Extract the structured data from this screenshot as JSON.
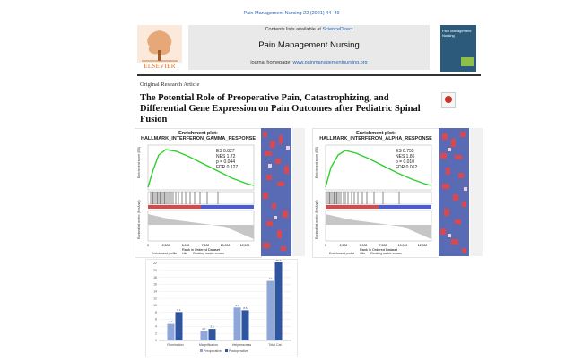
{
  "header": {
    "journal_ref": "Pain Management Nursing 22 (2021) 44–49",
    "contents_prefix": "Contents lists available at ",
    "contents_link": "ScienceDirect",
    "journal_name": "Pain Management Nursing",
    "homepage_prefix": "journal homepage: ",
    "homepage_url": "www.painmanagementnursing.org",
    "publisher": "ELSEVIER",
    "cover_title": "Pain Management Nursing"
  },
  "article": {
    "type": "Original Research Article",
    "title": "The Potential Role of Preoperative Pain, Catastrophizing, and Differential Gene Expression on Pain Outcomes after Pediatric Spinal Fusion"
  },
  "gsea_left": {
    "heading": "Enrichment plot:",
    "name": "HALLMARK_INTERFERON_GAMMA_RESPONSE",
    "es": "ES 0.827",
    "nes": "NES 1.72",
    "p": "p = 0.044",
    "fdr": "FDR 0.127",
    "xlabel": "Rank in Ordered Dataset",
    "ylabel_top": "Enrichment score (ES)",
    "ylabel_bottom": "Ranked list metric (PreAnal)",
    "legend": [
      "Enrichment profile",
      "Hits",
      "Ranking metric scores"
    ],
    "xticks": [
      "0",
      "2,500",
      "5,000",
      "7,500",
      "10,000",
      "12,500"
    ]
  },
  "gsea_right": {
    "heading": "Enrichment plot:",
    "name": "HALLMARK_INTERFERON_ALPHA_RESPONSE",
    "es": "ES 0.755",
    "nes": "NES 1.86",
    "p": "p = 0.010",
    "fdr": "FDR 0.062",
    "xlabel": "Rank in Ordered Dataset",
    "ylabel_top": "Enrichment score (ES)",
    "ylabel_bottom": "Ranked list metric (PreAnal)",
    "legend": [
      "Enrichment profile",
      "Hits",
      "Ranking metric scores"
    ],
    "xticks": [
      "0",
      "2,500",
      "5,000",
      "7,500",
      "10,000",
      "12,500"
    ]
  },
  "chart_data": {
    "type": "bar",
    "categories": [
      "Rumination",
      "Magnification",
      "Helplessness",
      "Total Cat"
    ],
    "series": [
      {
        "name": "Preoperative",
        "values": [
          4.7,
          2.7,
          9.4,
          17.0
        ],
        "color": "#8ea6d8"
      },
      {
        "name": "Postoperative",
        "values": [
          8.1,
          3.3,
          8.6,
          22.4
        ],
        "color": "#2f55a0"
      }
    ],
    "ylim": [
      0,
      22
    ],
    "yticks": [
      "0",
      "2",
      "4",
      "6",
      "8",
      "10",
      "12",
      "14",
      "16",
      "18",
      "20",
      "22"
    ],
    "title": "",
    "xlabel": "",
    "ylabel": ""
  }
}
